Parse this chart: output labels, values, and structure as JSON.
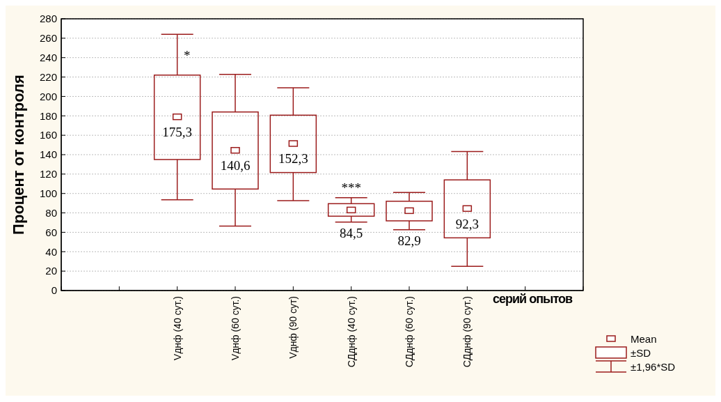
{
  "chart_data": {
    "type": "box",
    "xlabel": "серий опытов",
    "ylabel": "Процент от контроля",
    "categories": [
      null,
      "Vднф (40 сут.)",
      "Vднф (60 сут.)",
      "Vднф (90 сут)",
      "СДднф (40 сут.)",
      "СДднф (60 сут.)",
      "СДднф (90 сут.)",
      null
    ],
    "series": [
      {
        "color": "#9b1b1b",
        "boxes": [
          null,
          {
            "low": 93.5,
            "q1": 135,
            "q3": 222,
            "high": 264,
            "mean": 179
          },
          {
            "low": 66.5,
            "q1": 104.6,
            "q3": 184,
            "high": 222.8,
            "mean": 144.5
          },
          {
            "low": 92.6,
            "q1": 121.6,
            "q3": 180.7,
            "high": 209,
            "mean": 151.5
          },
          {
            "low": 70.6,
            "q1": 76.6,
            "q3": 89.5,
            "high": 95.7,
            "mean": 83
          },
          {
            "low": 62.7,
            "q1": 71.8,
            "q3": 92,
            "high": 101,
            "mean": 82.3
          },
          {
            "low": 25,
            "q1": 54.3,
            "q3": 114,
            "high": 143.3,
            "mean": 84.5
          },
          null
        ]
      }
    ],
    "ylim": [
      0,
      280
    ],
    "yticks": [
      0,
      20,
      40,
      60,
      80,
      100,
      120,
      140,
      160,
      180,
      200,
      220,
      240,
      260,
      280
    ],
    "grid": "y",
    "annotations": [
      "175,3",
      "140,6",
      "152,3",
      "84,5",
      "82,9",
      "92,3",
      {
        "text": "*",
        "x": "Vднф (40 сут.)",
        "y": 242.6
      },
      {
        "text": "***",
        "x": "СДднф (40 сут.)",
        "y": 95.7
      },
      "Mean",
      "±SD",
      "±1,96*SD"
    ]
  }
}
